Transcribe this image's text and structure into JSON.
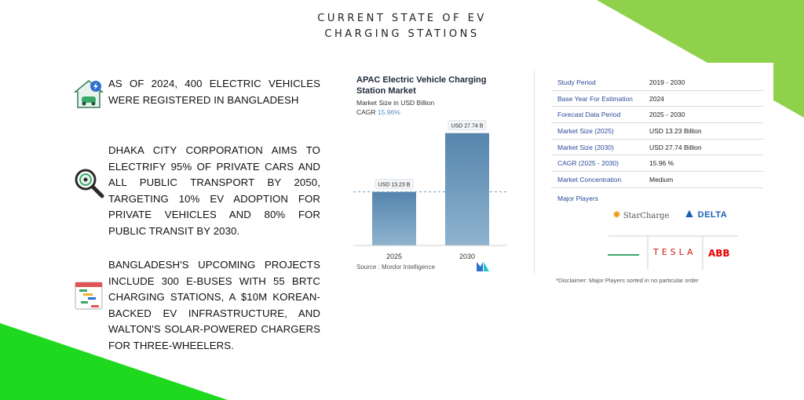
{
  "title": {
    "line1": "CURRENT STATE OF EV",
    "line2": "CHARGING STATIONS"
  },
  "colors": {
    "accent_green": "#8fd14b",
    "bright_green": "#1ed91e",
    "bar_blue": "#5f8fb4",
    "header_blue": "#2b4a9a"
  },
  "points": [
    {
      "icon": "ev-charging-house-icon",
      "text": "As of 2024, 400 electric vehicles were registered in Bangladesh"
    },
    {
      "icon": "magnifier-target-icon",
      "text": "Dhaka City Corporation aims to electrify 95% of private cars and all public transport by 2050, targeting 10% EV adoption for private vehicles and 80% for public transit by 2030."
    },
    {
      "icon": "gantt-calendar-icon",
      "text": "Bangladesh's upcoming projects include 300 e-buses with 55 BRTC charging stations, a $10M Korean-backed EV infrastructure, and Walton's solar-powered chargers for three-wheelers."
    }
  ],
  "chart_card": {
    "title": "APAC Electric Vehicle Charging Station Market",
    "subtitle": "Market Size in USD Billion",
    "cagr_label": "CAGR",
    "cagr_value": "15.96%",
    "source": "Source : Mordor Intelligence"
  },
  "chart_data": {
    "type": "bar",
    "title": "APAC Electric Vehicle Charging Station Market",
    "ylabel": "Market Size in USD Billion",
    "categories": [
      "2025",
      "2030"
    ],
    "values": [
      13.23,
      27.74
    ],
    "data_labels": [
      "USD 13.23 B",
      "USD 27.74 B"
    ],
    "ylim": [
      0,
      30
    ],
    "grid": false
  },
  "table": {
    "rows": [
      {
        "key": "Study Period",
        "value": "2019 - 2030"
      },
      {
        "key": "Base Year For Estimation",
        "value": "2024"
      },
      {
        "key": "Forecast Data Period",
        "value": "2025 - 2030"
      },
      {
        "key": "Market Size (2025)",
        "value": "USD 13.23 Billion"
      },
      {
        "key": "Market Size (2030)",
        "value": "USD 27.74 Billion"
      },
      {
        "key": "CAGR (2025 - 2030)",
        "value": "15.96 %"
      },
      {
        "key": "Market Concentration",
        "value": "Medium"
      }
    ],
    "players_label": "Major Players",
    "players": [
      "StarCharge",
      "DELTA",
      "TESLA",
      "ABB"
    ],
    "disclaimer": "*Disclaimer: Major Players sorted in no particular order"
  }
}
